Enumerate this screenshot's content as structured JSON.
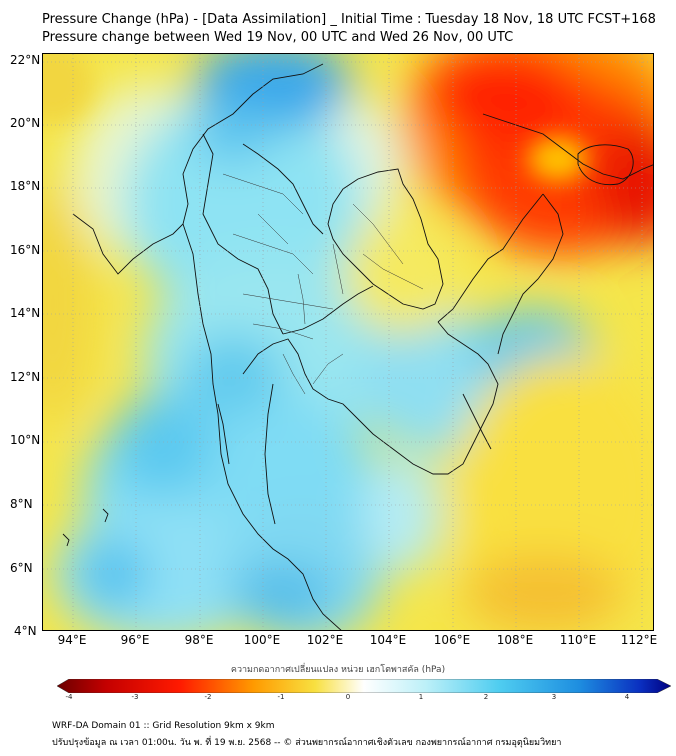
{
  "header": {
    "title_line1": "Pressure Change (hPa) - [Data Assimilation] _ Initial Time : Tuesday 18 Nov, 18 UTC FCST+168",
    "title_line2": "Pressure change between Wed 19 Nov, 00 UTC and Wed 26 Nov, 00 UTC"
  },
  "map": {
    "lat_labels": [
      "22°N",
      "20°N",
      "18°N",
      "16°N",
      "14°N",
      "12°N",
      "10°N",
      "8°N",
      "6°N",
      "4°N"
    ],
    "lon_labels": [
      "94°E",
      "96°E",
      "98°E",
      "100°E",
      "102°E",
      "104°E",
      "106°E",
      "108°E",
      "110°E",
      "112°E"
    ],
    "colors": {
      "ocean_base": "#f5e64a",
      "strong_rise": "#ff1a00",
      "rise": "#ff8a00",
      "neutral": "#ffffff",
      "fall": "#6fdcf3",
      "strong_fall": "#1f9fe0",
      "deep_fall": "#1040c8"
    }
  },
  "colorbar": {
    "label": "ความกดอากาศเปลี่ยนแปลง หน่วย เฮกโตพาสคัล (hPa)",
    "ticks": [
      "-4",
      "-3",
      "-2",
      "-1",
      "0",
      "1",
      "2",
      "3",
      "4"
    ],
    "min": -4,
    "max": 4
  },
  "footer": {
    "line1": "WRF-DA Domain 01 :: Grid Resolution 9km x 9km",
    "line2": "ปรับปรุงข้อมูล ณ เวลา 01:00น. วัน พ. ที่ 19 พ.ย. 2568 -- © ส่วนพยากรณ์อากาศเชิงตัวเลข กองพยากรณ์อากาศ กรมอุตุนิยมวิทยา"
  }
}
